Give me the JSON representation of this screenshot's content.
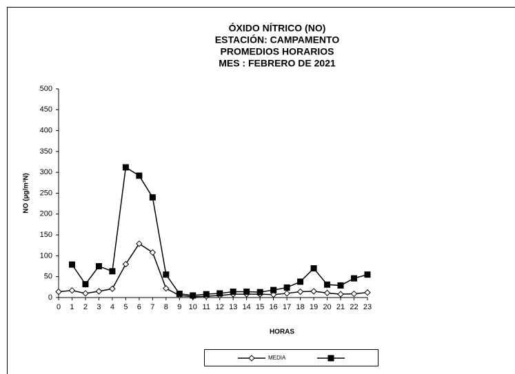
{
  "chart_data": {
    "type": "line",
    "title": [
      "ÓXIDO NÍTRICO (NO)",
      "ESTACIÓN: CAMPAMENTO",
      "PROMEDIOS HORARIOS",
      "MES : FEBRERO DE 2021"
    ],
    "x_label": "HORAS",
    "y_label": "NO (µg/m³N)",
    "x": [
      0,
      1,
      2,
      3,
      4,
      5,
      6,
      7,
      8,
      9,
      10,
      11,
      12,
      13,
      14,
      15,
      16,
      17,
      18,
      19,
      20,
      21,
      22,
      23
    ],
    "series": [
      {
        "name": "MEDIA",
        "color": "#000000",
        "marker": "diamond",
        "values": [
          14,
          17,
          10,
          15,
          21,
          80,
          129,
          108,
          22,
          5,
          2,
          3,
          5,
          8,
          8,
          8,
          7,
          10,
          14,
          15,
          11,
          8,
          9,
          12
        ]
      },
      {
        "color": "#000000",
        "marker": "square",
        "values": [
          null,
          79,
          32,
          75,
          63,
          312,
          292,
          240,
          55,
          9,
          5,
          8,
          10,
          14,
          14,
          13,
          18,
          24,
          38,
          70,
          31,
          29,
          46,
          55
        ]
      }
    ],
    "xlim": [
      0,
      23
    ],
    "xticks": [
      0,
      1,
      2,
      3,
      4,
      5,
      6,
      7,
      8,
      9,
      10,
      11,
      12,
      13,
      14,
      15,
      16,
      17,
      18,
      19,
      20,
      21,
      22,
      23
    ],
    "ylim": [
      0,
      500
    ],
    "yticks": [
      0,
      50,
      100,
      150,
      200,
      250,
      300,
      350,
      400,
      450,
      500
    ],
    "grid": false,
    "legend": "bottom"
  }
}
